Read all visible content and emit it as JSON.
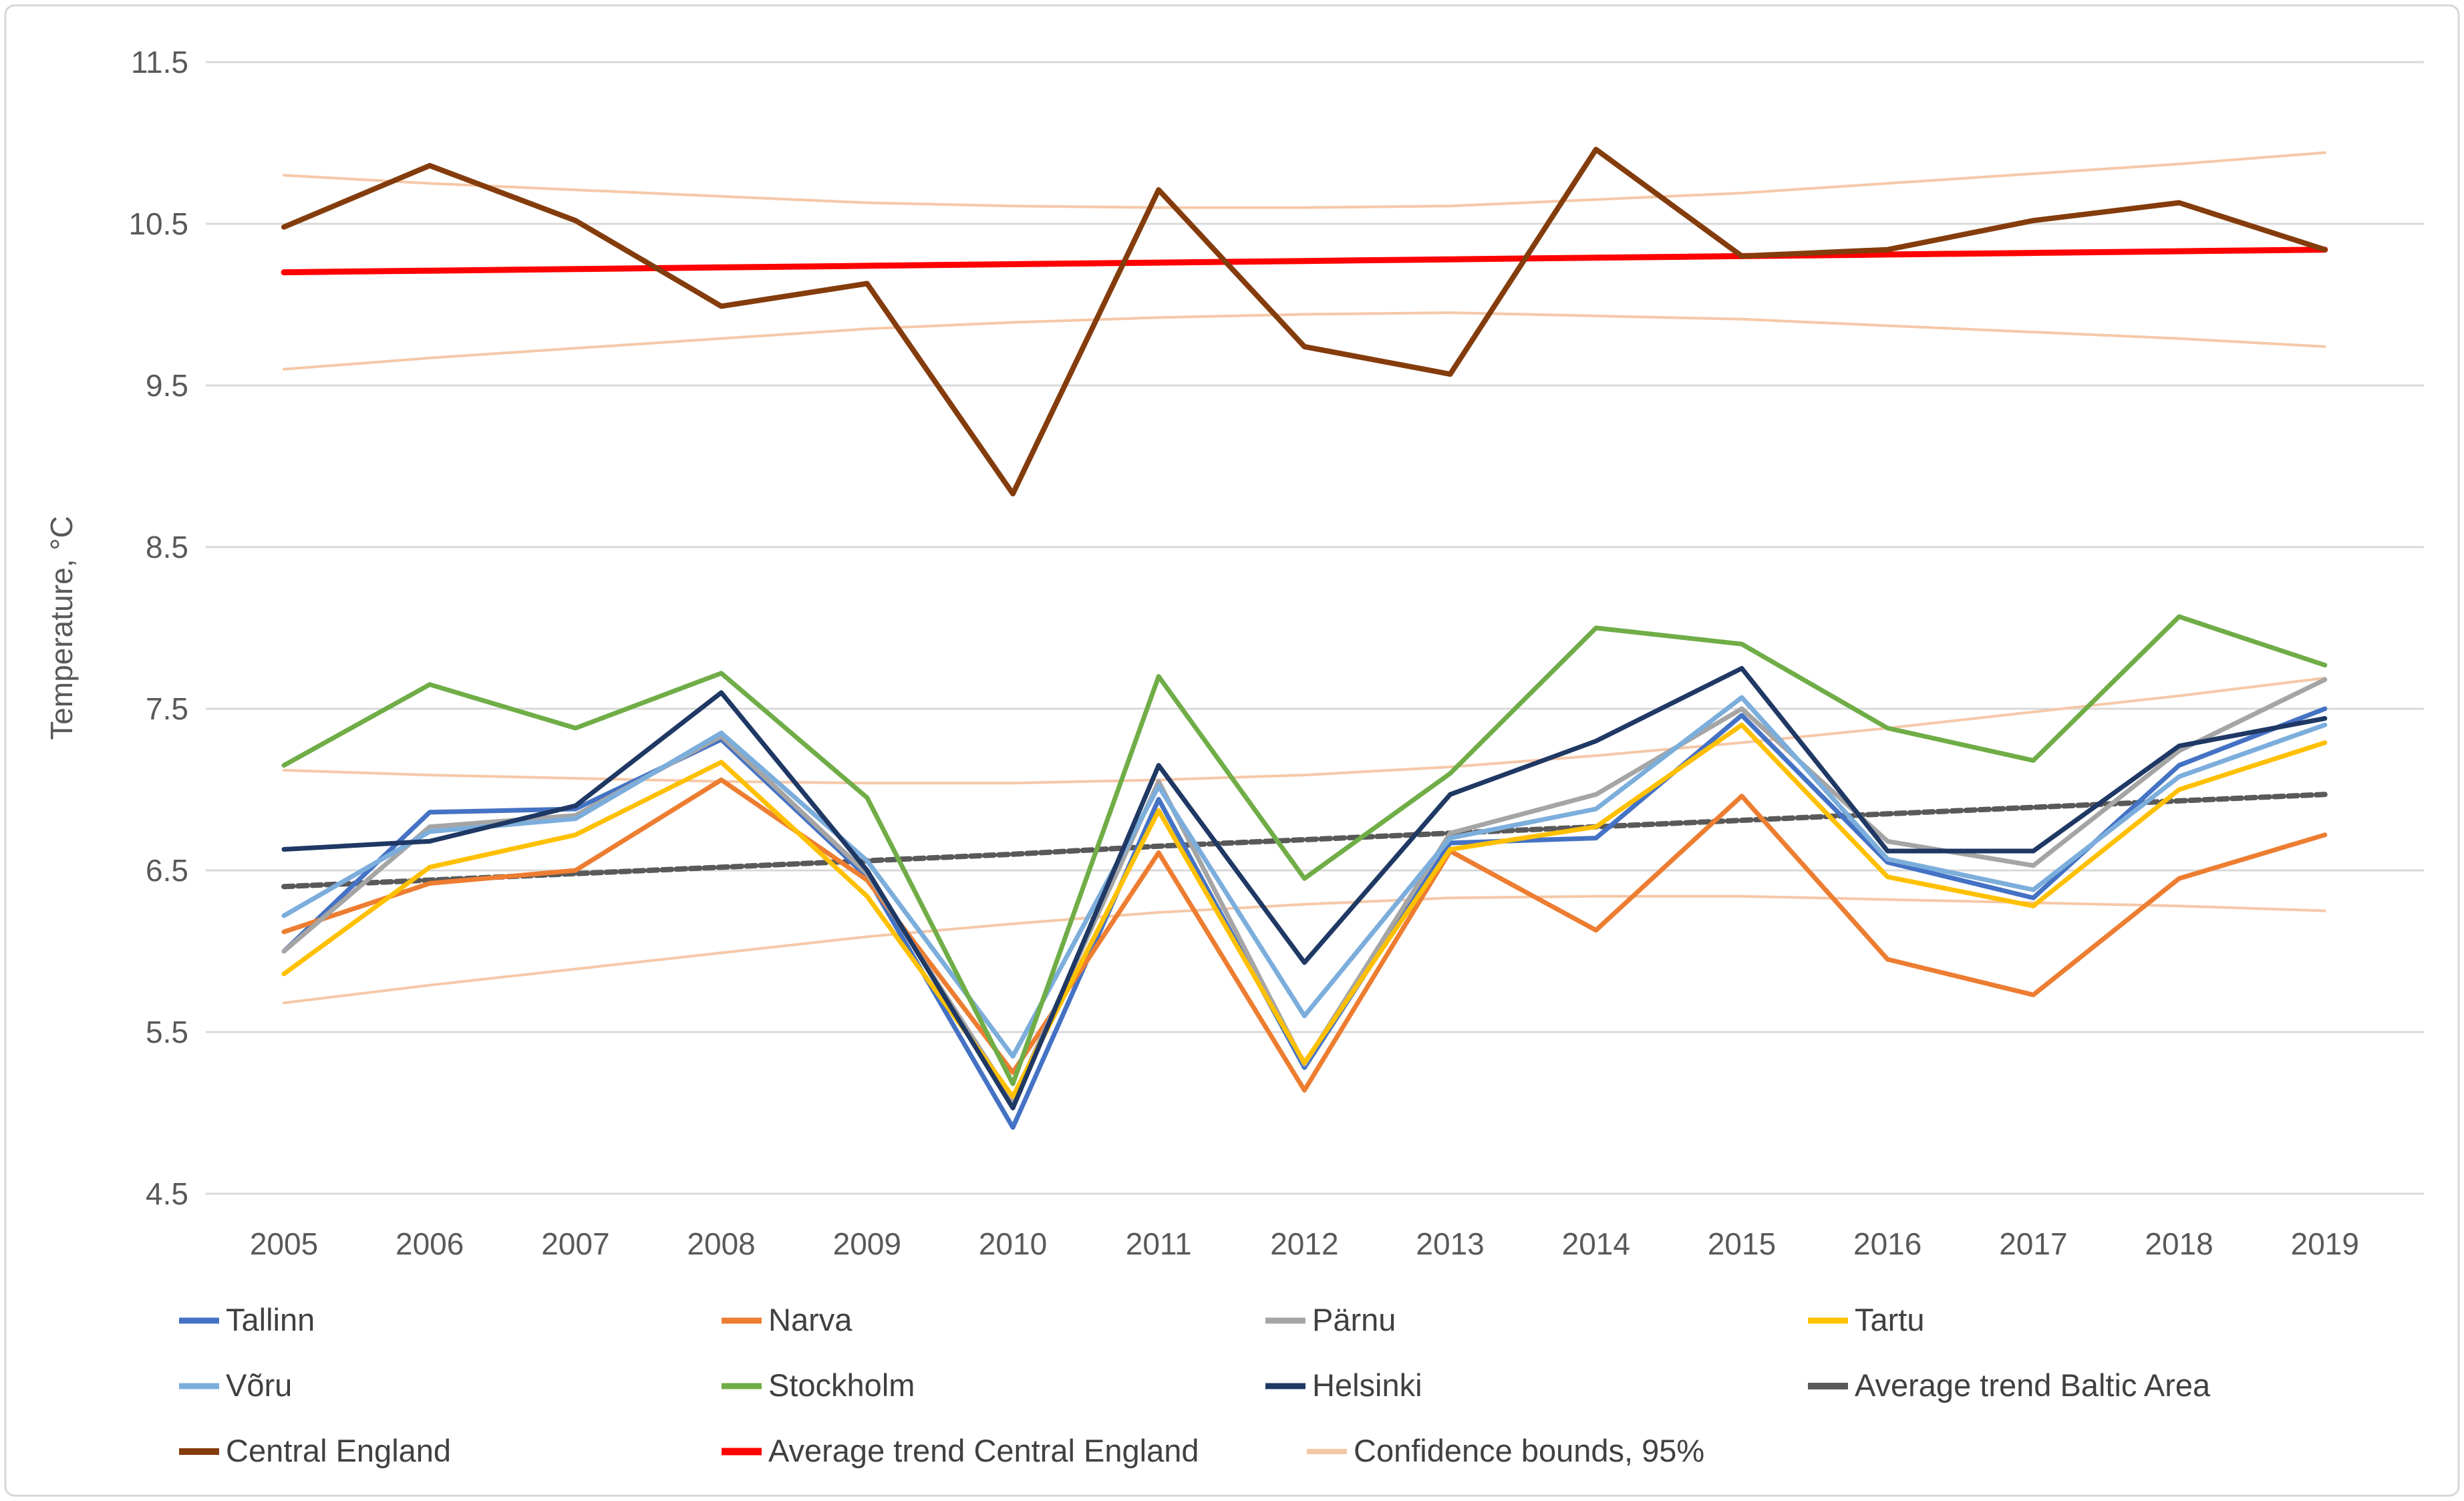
{
  "chart_data": {
    "type": "line",
    "title": "",
    "ylabel": "Temperature, °C",
    "xlabel": "",
    "x": [
      2005,
      2006,
      2007,
      2008,
      2009,
      2010,
      2011,
      2012,
      2013,
      2014,
      2015,
      2016,
      2017,
      2018,
      2019
    ],
    "ylim": [
      4.5,
      11.5
    ],
    "yticks": [
      11.5,
      10.5,
      9.5,
      8.5,
      7.5,
      6.5,
      5.5,
      4.5
    ],
    "grid": true,
    "legend_position": "bottom",
    "colors": {
      "grid": "#d9d9d9",
      "tick_text": "#595959",
      "legend_text": "#404040",
      "border": "#d6d6d6"
    },
    "series": [
      {
        "name": "Tallinn",
        "color": "#4472C4",
        "width": 7,
        "dash": "",
        "values": [
          6.0,
          6.86,
          6.88,
          7.31,
          6.46,
          4.91,
          6.94,
          5.28,
          6.67,
          6.7,
          7.46,
          6.55,
          6.33,
          7.15,
          7.5
        ]
      },
      {
        "name": "Narva",
        "color": "#ED7D31",
        "width": 7,
        "dash": "",
        "values": [
          6.12,
          6.42,
          6.5,
          7.06,
          6.44,
          5.25,
          6.61,
          5.14,
          6.62,
          6.13,
          6.96,
          5.95,
          5.73,
          6.45,
          6.72
        ]
      },
      {
        "name": "Pärnu",
        "color": "#A5A5A5",
        "width": 7,
        "dash": "",
        "values": [
          6.0,
          6.77,
          6.84,
          7.33,
          6.48,
          5.08,
          7.05,
          5.3,
          6.73,
          6.97,
          7.5,
          6.68,
          6.53,
          7.24,
          7.68
        ]
      },
      {
        "name": "Tartu",
        "color": "#FFC000",
        "width": 7,
        "dash": "",
        "values": [
          5.86,
          6.52,
          6.72,
          7.17,
          6.34,
          5.1,
          6.87,
          5.31,
          6.63,
          6.77,
          7.4,
          6.46,
          6.28,
          7.0,
          7.29
        ]
      },
      {
        "name": "Võru",
        "color": "#7CAEDC",
        "width": 7,
        "dash": "",
        "values": [
          6.22,
          6.74,
          6.82,
          7.35,
          6.56,
          5.35,
          7.02,
          5.6,
          6.7,
          6.88,
          7.57,
          6.57,
          6.38,
          7.08,
          7.4
        ]
      },
      {
        "name": "Stockholm",
        "color": "#70AD47",
        "width": 7,
        "dash": "",
        "values": [
          7.15,
          7.65,
          7.38,
          7.72,
          6.95,
          5.18,
          7.7,
          6.45,
          7.1,
          8.0,
          7.9,
          7.38,
          7.18,
          8.07,
          7.77
        ]
      },
      {
        "name": "Helsinki",
        "color": "#1F3864",
        "width": 7,
        "dash": "",
        "values": [
          6.63,
          6.68,
          6.9,
          7.6,
          6.5,
          5.03,
          7.15,
          5.93,
          6.97,
          7.3,
          7.75,
          6.62,
          6.62,
          7.27,
          7.44
        ]
      },
      {
        "name": "Average trend Baltic Area",
        "color": "#595959",
        "width": 8,
        "dash": "14 7",
        "values": [
          6.4,
          6.44,
          6.48,
          6.52,
          6.56,
          6.6,
          6.65,
          6.69,
          6.73,
          6.77,
          6.81,
          6.85,
          6.89,
          6.93,
          6.97
        ]
      },
      {
        "name": "Central England",
        "color": "#843C0C",
        "width": 8,
        "dash": "",
        "values": [
          10.48,
          10.86,
          10.52,
          9.99,
          10.13,
          8.83,
          10.71,
          9.74,
          9.57,
          10.96,
          10.3,
          10.34,
          10.52,
          10.63,
          10.34
        ]
      },
      {
        "name": "Average trend Central England",
        "color": "#FF0000",
        "width": 9,
        "dash": "",
        "values": [
          10.2,
          10.21,
          10.22,
          10.23,
          10.24,
          10.25,
          10.26,
          10.27,
          10.28,
          10.29,
          10.3,
          10.31,
          10.32,
          10.33,
          10.34
        ]
      },
      {
        "name": "Confidence bounds, 95%",
        "color": "#F5C8A8",
        "width": 4,
        "dash": "",
        "lines": [
          [
            10.8,
            10.75,
            10.71,
            10.67,
            10.63,
            10.61,
            10.6,
            10.6,
            10.61,
            10.65,
            10.69,
            10.75,
            10.81,
            10.87,
            10.94
          ],
          [
            9.6,
            9.67,
            9.73,
            9.79,
            9.85,
            9.89,
            9.92,
            9.94,
            9.95,
            9.93,
            9.91,
            9.87,
            9.83,
            9.79,
            9.74
          ],
          [
            7.12,
            7.09,
            7.07,
            7.05,
            7.04,
            7.04,
            7.06,
            7.09,
            7.14,
            7.21,
            7.29,
            7.38,
            7.48,
            7.58,
            7.69
          ],
          [
            5.68,
            5.79,
            5.89,
            5.99,
            6.09,
            6.17,
            6.24,
            6.29,
            6.33,
            6.34,
            6.34,
            6.32,
            6.3,
            6.28,
            6.25
          ]
        ]
      }
    ]
  },
  "legend": {
    "rows": [
      [
        "Tallinn",
        "Narva",
        "Pärnu",
        "Tartu"
      ],
      [
        "Võru",
        "Stockholm",
        "Helsinki",
        "Average trend Baltic Area"
      ],
      [
        "Central England",
        "Average trend Central England",
        "Confidence bounds, 95%"
      ]
    ]
  },
  "axis": {
    "ylabel": "Temperature, °C",
    "ytick_labels": [
      "11.5",
      "10.5",
      "9.5",
      "8.5",
      "7.5",
      "6.5",
      "5.5",
      "4.5"
    ],
    "xtick_labels": [
      "2005",
      "2006",
      "2007",
      "2008",
      "2009",
      "2010",
      "2011",
      "2012",
      "2013",
      "2014",
      "2015",
      "2016",
      "2017",
      "2018",
      "2019"
    ]
  }
}
